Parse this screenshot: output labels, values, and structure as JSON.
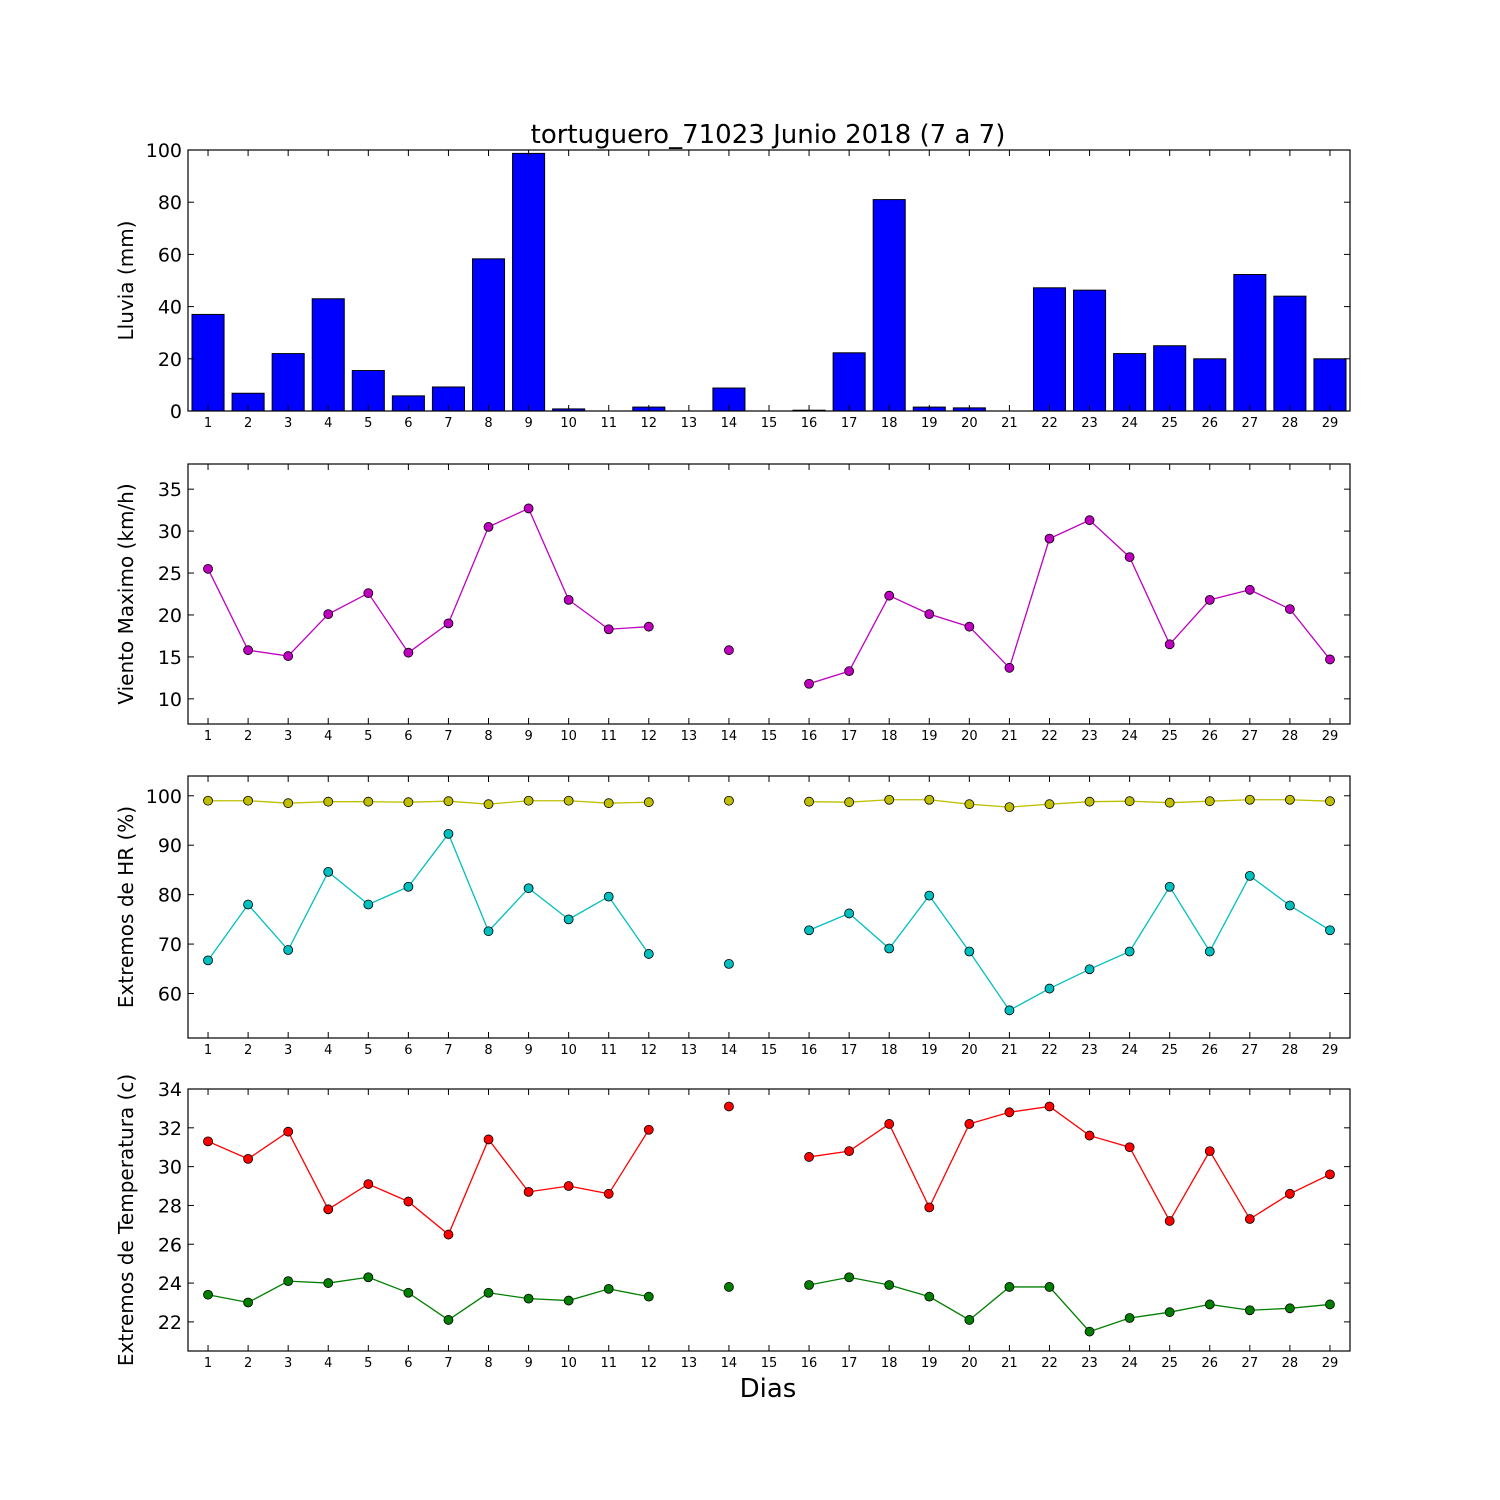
{
  "title": "tortuguero_71023 Junio 2018  (7 a 7)",
  "xlabel": "Dias",
  "days": [
    1,
    2,
    3,
    4,
    5,
    6,
    7,
    8,
    9,
    10,
    11,
    12,
    13,
    14,
    15,
    16,
    17,
    18,
    19,
    20,
    21,
    22,
    23,
    24,
    25,
    26,
    27,
    28,
    29
  ],
  "chart_data": [
    {
      "type": "bar",
      "ylabel": "Lluvia (mm)",
      "ylim": [
        0,
        100
      ],
      "yticks": [
        0,
        20,
        40,
        60,
        80,
        100
      ],
      "categories": [
        1,
        2,
        3,
        4,
        5,
        6,
        7,
        8,
        9,
        10,
        11,
        12,
        13,
        14,
        15,
        16,
        17,
        18,
        19,
        20,
        21,
        22,
        23,
        24,
        25,
        26,
        27,
        28,
        29
      ],
      "series": [
        {
          "color": "#0000ff",
          "values": [
            37,
            6.8,
            22,
            43,
            15.5,
            5.8,
            9.2,
            58.3,
            98.7,
            0.8,
            0,
            1.5,
            0,
            8.8,
            0,
            0.3,
            22.3,
            81,
            1.5,
            1.2,
            0,
            47.2,
            46.3,
            22,
            25,
            20,
            52.3,
            44,
            20
          ]
        }
      ],
      "grid": false
    },
    {
      "type": "line",
      "ylabel": "Viento Maximo (km/h)",
      "ylim": [
        7,
        38
      ],
      "yticks": [
        10,
        15,
        20,
        25,
        30,
        35
      ],
      "x": [
        1,
        2,
        3,
        4,
        5,
        6,
        7,
        8,
        9,
        10,
        11,
        12,
        13,
        14,
        15,
        16,
        17,
        18,
        19,
        20,
        21,
        22,
        23,
        24,
        25,
        26,
        27,
        28,
        29
      ],
      "series": [
        {
          "color": "#bf00bf",
          "values": [
            25.5,
            15.8,
            15.1,
            20.1,
            22.6,
            15.5,
            19,
            30.5,
            32.7,
            21.8,
            18.3,
            18.6,
            null,
            15.8,
            null,
            11.8,
            13.3,
            22.3,
            20.1,
            18.6,
            13.7,
            29.1,
            31.3,
            26.9,
            16.5,
            21.8,
            23,
            20.7,
            14.7
          ]
        }
      ],
      "grid": false
    },
    {
      "type": "line",
      "ylabel": "Extremos de HR (%)",
      "ylim": [
        51,
        104
      ],
      "yticks": [
        60,
        70,
        80,
        90,
        100
      ],
      "x": [
        1,
        2,
        3,
        4,
        5,
        6,
        7,
        8,
        9,
        10,
        11,
        12,
        13,
        14,
        15,
        16,
        17,
        18,
        19,
        20,
        21,
        22,
        23,
        24,
        25,
        26,
        27,
        28,
        29
      ],
      "series": [
        {
          "color": "#bfbf00",
          "values": [
            99,
            99,
            98.5,
            98.8,
            98.8,
            98.7,
            98.9,
            98.3,
            99,
            99,
            98.5,
            98.7,
            null,
            99,
            null,
            98.8,
            98.7,
            99.2,
            99.2,
            98.3,
            97.7,
            98.3,
            98.8,
            98.9,
            98.6,
            98.9,
            99.2,
            99.2,
            98.9
          ]
        },
        {
          "color": "#00bfbf",
          "values": [
            66.7,
            78,
            68.8,
            84.6,
            78,
            81.6,
            92.3,
            72.6,
            81.3,
            75,
            79.6,
            68,
            null,
            66,
            null,
            72.8,
            76.2,
            69.1,
            79.8,
            68.5,
            56.6,
            61,
            64.9,
            68.5,
            81.6,
            68.5,
            83.8,
            77.8,
            72.8
          ]
        }
      ],
      "grid": false
    },
    {
      "type": "line",
      "ylabel": "Extremos de Temperatura (c)",
      "ylim": [
        20.5,
        34
      ],
      "yticks": [
        22,
        24,
        26,
        28,
        30,
        32,
        34
      ],
      "x": [
        1,
        2,
        3,
        4,
        5,
        6,
        7,
        8,
        9,
        10,
        11,
        12,
        13,
        14,
        15,
        16,
        17,
        18,
        19,
        20,
        21,
        22,
        23,
        24,
        25,
        26,
        27,
        28,
        29
      ],
      "series": [
        {
          "color": "#ff0000",
          "values": [
            31.3,
            30.4,
            31.8,
            27.8,
            29.1,
            28.2,
            26.5,
            31.4,
            28.7,
            29,
            28.6,
            31.9,
            null,
            33.1,
            null,
            30.5,
            30.8,
            32.2,
            27.9,
            32.2,
            32.8,
            33.1,
            31.6,
            31,
            27.2,
            30.8,
            27.3,
            28.6,
            29.6
          ]
        },
        {
          "color": "#007f00",
          "values": [
            23.4,
            23,
            24.1,
            24,
            24.3,
            23.5,
            22.1,
            23.5,
            23.2,
            23.1,
            23.7,
            23.3,
            null,
            23.8,
            null,
            23.9,
            24.3,
            23.9,
            23.3,
            22.1,
            23.8,
            23.8,
            21.5,
            22.2,
            22.5,
            22.9,
            22.6,
            22.7,
            22.9
          ]
        }
      ],
      "grid": false
    }
  ]
}
